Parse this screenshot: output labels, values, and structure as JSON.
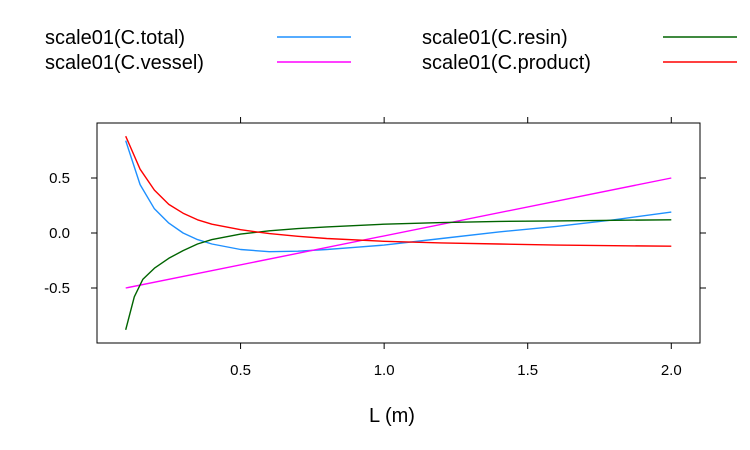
{
  "chart_data": {
    "type": "line",
    "title": "",
    "xlabel": "L (m)",
    "ylabel": "",
    "xlim": [
      0.0,
      2.1
    ],
    "ylim": [
      -1.0,
      1.0
    ],
    "x_ticks": [
      0.5,
      1.0,
      1.5,
      2.0
    ],
    "x_tick_labels": [
      "0.5",
      "1.0",
      "1.5",
      "2.0"
    ],
    "y_ticks": [
      -0.5,
      0.0,
      0.5
    ],
    "y_tick_labels": [
      "-0.5",
      "0.0",
      "0.5"
    ],
    "grid": false,
    "legend_position": "top",
    "series": [
      {
        "name": "scale01(C.total)",
        "color": "#1E90FF",
        "x": [
          0.1,
          0.15,
          0.2,
          0.25,
          0.3,
          0.35,
          0.4,
          0.5,
          0.6,
          0.7,
          0.8,
          0.9,
          1.0,
          1.2,
          1.4,
          1.6,
          1.8,
          2.0
        ],
        "y": [
          0.84,
          0.44,
          0.22,
          0.09,
          0.0,
          -0.06,
          -0.1,
          -0.15,
          -0.17,
          -0.165,
          -0.15,
          -0.13,
          -0.11,
          -0.05,
          0.01,
          0.06,
          0.12,
          0.19
        ]
      },
      {
        "name": "scale01(C.vessel)",
        "color": "#FF00FF",
        "x": [
          0.1,
          2.0
        ],
        "y": [
          -0.5,
          0.5
        ]
      },
      {
        "name": "scale01(C.resin)",
        "color": "#006400",
        "x": [
          0.1,
          0.13,
          0.16,
          0.2,
          0.25,
          0.3,
          0.35,
          0.4,
          0.5,
          0.6,
          0.7,
          0.8,
          1.0,
          1.2,
          1.4,
          1.6,
          1.8,
          2.0
        ],
        "y": [
          -0.88,
          -0.58,
          -0.42,
          -0.32,
          -0.23,
          -0.16,
          -0.1,
          -0.06,
          -0.01,
          0.02,
          0.04,
          0.055,
          0.08,
          0.095,
          0.105,
          0.11,
          0.115,
          0.12
        ]
      },
      {
        "name": "scale01(C.product)",
        "color": "#FF0000",
        "x": [
          0.1,
          0.15,
          0.2,
          0.25,
          0.3,
          0.35,
          0.4,
          0.5,
          0.6,
          0.7,
          0.8,
          1.0,
          1.2,
          1.4,
          1.6,
          1.8,
          2.0
        ],
        "y": [
          0.88,
          0.58,
          0.39,
          0.26,
          0.18,
          0.12,
          0.08,
          0.03,
          -0.005,
          -0.03,
          -0.05,
          -0.075,
          -0.09,
          -0.1,
          -0.11,
          -0.115,
          -0.12
        ]
      }
    ]
  }
}
